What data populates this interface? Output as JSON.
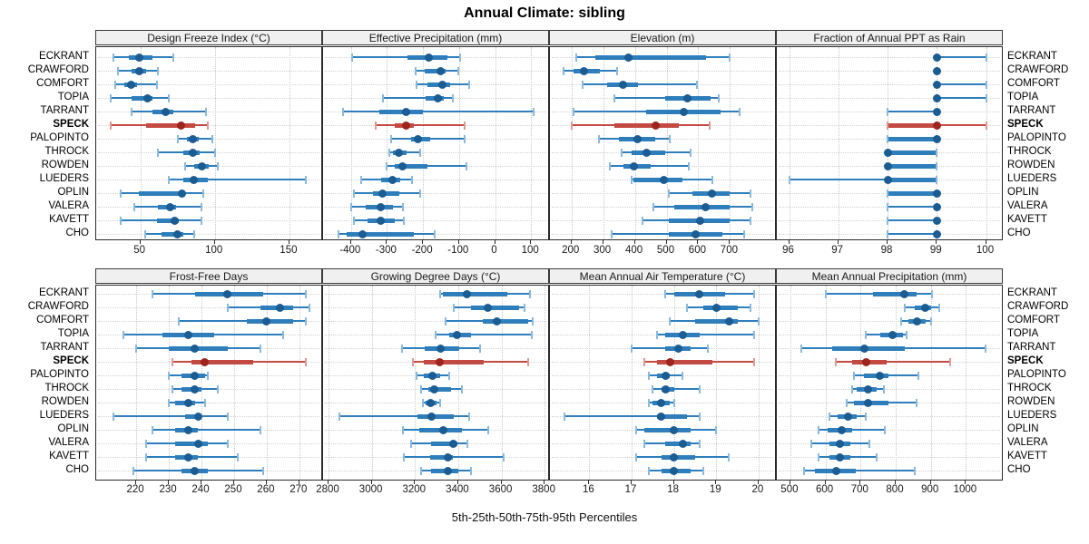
{
  "title": "Annual Climate: sibling",
  "xlabel": "5th-25th-50th-75th-95th Percentiles",
  "percentile_labels": [
    "5th",
    "25th",
    "50th",
    "75th",
    "95th"
  ],
  "stations": [
    "ECKRANT",
    "CRAWFORD",
    "COMFORT",
    "TOPIA",
    "TARRANT",
    "SPECK",
    "PALOPINTO",
    "THROCK",
    "ROWDEN",
    "LUEDERS",
    "OPLIN",
    "VALERA",
    "KAVETT",
    "CHO"
  ],
  "highlight_station": "SPECK",
  "colors": {
    "blue_line": "#2e7ebc",
    "blue_cap": "#8ab9dc",
    "blue_dot": "#1b5c93",
    "red_line": "#c34a42",
    "red_cap": "#dc9a94",
    "red_dot": "#9e241e",
    "strip_bg": "#f0f0f0",
    "grid": "#c9c9c9"
  },
  "chart_data": {
    "type": "dotplot-interval-trellis",
    "note": "Each row shows 5th-25th-50th-75th-95th percentile whisker/box/dot per station",
    "panels": [
      {
        "title": "Design Freeze Index (°C)",
        "grid_row": 0,
        "axis": {
          "min": 21,
          "max": 172,
          "ticks": [
            50,
            100,
            150
          ]
        },
        "values": {
          "ECKRANT": [
            32,
            42,
            49,
            58,
            72
          ],
          "CRAWFORD": [
            35,
            44,
            49,
            54,
            62
          ],
          "COMFORT": [
            33,
            39,
            44,
            48,
            61
          ],
          "TOPIA": [
            30,
            44,
            55,
            58,
            69
          ],
          "TARRANT": [
            44,
            58,
            67,
            72,
            94
          ],
          "SPECK": [
            30,
            54,
            77,
            87,
            95
          ],
          "PALOPINTO": [
            75,
            81,
            85,
            89,
            98
          ],
          "THROCK": [
            62,
            79,
            85,
            90,
            100
          ],
          "ROWDEN": [
            80,
            86,
            91,
            96,
            102
          ],
          "LUEDERS": [
            69,
            79,
            86,
            95,
            161
          ],
          "OPLIN": [
            37,
            49,
            78,
            80,
            92
          ],
          "VALERA": [
            46,
            62,
            70,
            74,
            91
          ],
          "KAVETT": [
            37,
            61,
            73,
            76,
            91
          ],
          "CHO": [
            53,
            64,
            75,
            79,
            86
          ]
        }
      },
      {
        "title": "Effective Precipitation (mm)",
        "grid_row": 0,
        "axis": {
          "min": -475,
          "max": 150,
          "ticks": [
            -400,
            -300,
            -200,
            -100,
            0,
            100
          ]
        },
        "values": {
          "ECKRANT": [
            -398,
            -243,
            -185,
            -133,
            -96
          ],
          "CRAWFORD": [
            -221,
            -196,
            -152,
            -137,
            -102
          ],
          "COMFORT": [
            -217,
            -188,
            -146,
            -125,
            -71
          ],
          "TOPIA": [
            -311,
            -192,
            -160,
            -142,
            -118
          ],
          "TARRANT": [
            -423,
            -321,
            -248,
            -200,
            108
          ],
          "SPECK": [
            -332,
            -279,
            -248,
            -225,
            -85
          ],
          "PALOPINTO": [
            -288,
            -233,
            -214,
            -179,
            -85
          ],
          "THROCK": [
            -293,
            -283,
            -268,
            -246,
            -208
          ],
          "ROWDEN": [
            -300,
            -279,
            -256,
            -188,
            -79
          ],
          "LUEDERS": [
            -371,
            -317,
            -285,
            -263,
            -231
          ],
          "OPLIN": [
            -392,
            -338,
            -313,
            -265,
            -208
          ],
          "VALERA": [
            -400,
            -358,
            -317,
            -283,
            -256
          ],
          "KAVETT": [
            -393,
            -354,
            -317,
            -279,
            -254
          ],
          "CHO": [
            -435,
            -413,
            -368,
            -225,
            -168
          ]
        }
      },
      {
        "title": "Elevation (m)",
        "grid_row": 0,
        "axis": {
          "min": 135,
          "max": 845,
          "ticks": [
            200,
            300,
            400,
            500,
            600,
            700
          ]
        },
        "values": {
          "ECKRANT": [
            215,
            275,
            380,
            625,
            700
          ],
          "CRAWFORD": [
            175,
            205,
            240,
            290,
            345
          ],
          "COMFORT": [
            234,
            313,
            362,
            411,
            595
          ],
          "TOPIA": [
            335,
            495,
            565,
            640,
            665
          ],
          "TARRANT": [
            205,
            435,
            555,
            670,
            730
          ],
          "SPECK": [
            200,
            335,
            465,
            540,
            635
          ],
          "PALOPINTO": [
            286,
            350,
            409,
            464,
            509
          ],
          "THROCK": [
            357,
            391,
            436,
            495,
            575
          ],
          "ROWDEN": [
            321,
            364,
            397,
            450,
            571
          ],
          "LUEDERS": [
            390,
            395,
            490,
            550,
            645
          ],
          "OPLIN": [
            507,
            582,
            644,
            698,
            764
          ],
          "VALERA": [
            459,
            523,
            623,
            700,
            770
          ],
          "KAVETT": [
            425,
            507,
            605,
            698,
            764
          ],
          "CHO": [
            327,
            507,
            591,
            675,
            745
          ]
        }
      },
      {
        "title": "Fraction of Annual PPT as Rain",
        "grid_row": 0,
        "axis": {
          "min": 95.77,
          "max": 100.34,
          "ticks": [
            96,
            97,
            98,
            99,
            100
          ]
        },
        "values": {
          "ECKRANT": [
            99,
            99,
            99,
            99,
            100
          ],
          "CRAWFORD": [
            99,
            99,
            99,
            99,
            99
          ],
          "COMFORT": [
            99,
            99,
            99,
            99,
            100
          ],
          "TOPIA": [
            99,
            99,
            99,
            99,
            100
          ],
          "TARRANT": [
            98,
            99,
            99,
            99,
            99
          ],
          "SPECK": [
            98,
            98,
            99,
            99,
            100
          ],
          "PALOPINTO": [
            98,
            98,
            99,
            99,
            99
          ],
          "THROCK": [
            98,
            98,
            98,
            99,
            99
          ],
          "ROWDEN": [
            98,
            98,
            98,
            99,
            99
          ],
          "LUEDERS": [
            96,
            98,
            98,
            99,
            99
          ],
          "OPLIN": [
            98,
            98,
            99,
            99,
            99
          ],
          "VALERA": [
            98,
            99,
            99,
            99,
            99
          ],
          "KAVETT": [
            98,
            99,
            99,
            99,
            99
          ],
          "CHO": [
            98,
            99,
            99,
            99,
            99
          ]
        }
      },
      {
        "title": "Frost-Free Days",
        "grid_row": 1,
        "axis": {
          "min": 208,
          "max": 277,
          "ticks": [
            220,
            230,
            240,
            250,
            260,
            270
          ]
        },
        "values": {
          "ECKRANT": [
            225,
            238,
            248,
            259,
            272
          ],
          "CRAWFORD": [
            248,
            258,
            264,
            268,
            273
          ],
          "COMFORT": [
            233,
            254,
            260,
            268,
            272
          ],
          "TOPIA": [
            216,
            228,
            236,
            244,
            265
          ],
          "TARRANT": [
            220,
            230,
            238,
            248,
            258
          ],
          "SPECK": [
            231,
            237,
            241,
            256,
            272
          ],
          "PALOPINTO": [
            230,
            234,
            238,
            241,
            242
          ],
          "THROCK": [
            231,
            234,
            238,
            240,
            245
          ],
          "ROWDEN": [
            230,
            232,
            236,
            238,
            241
          ],
          "LUEDERS": [
            213,
            235,
            239,
            240,
            248
          ],
          "OPLIN": [
            225,
            232,
            236,
            239,
            258
          ],
          "VALERA": [
            223,
            232,
            239,
            242,
            248
          ],
          "KAVETT": [
            223,
            232,
            236,
            239,
            251
          ],
          "CHO": [
            219,
            234,
            238,
            242,
            259
          ]
        }
      },
      {
        "title": "Growing Degree Days (°C)",
        "grid_row": 1,
        "axis": {
          "min": 2779,
          "max": 3820,
          "ticks": [
            2800,
            3000,
            3200,
            3400,
            3600,
            3800
          ]
        },
        "values": {
          "ECKRANT": [
            3315,
            3330,
            3440,
            3625,
            3730
          ],
          "CRAWFORD": [
            3380,
            3460,
            3535,
            3680,
            3705
          ],
          "COMFORT": [
            3340,
            3515,
            3580,
            3725,
            3745
          ],
          "TOPIA": [
            3295,
            3360,
            3395,
            3460,
            3740
          ],
          "TARRANT": [
            3140,
            3245,
            3320,
            3405,
            3500
          ],
          "SPECK": [
            3190,
            3240,
            3315,
            3520,
            3725
          ],
          "PALOPINTO": [
            3205,
            3240,
            3280,
            3315,
            3360
          ],
          "THROCK": [
            3230,
            3260,
            3290,
            3365,
            3415
          ],
          "ROWDEN": [
            3235,
            3250,
            3270,
            3300,
            3315
          ],
          "LUEDERS": [
            2850,
            3210,
            3275,
            3380,
            3450
          ],
          "OPLIN": [
            3145,
            3220,
            3330,
            3415,
            3540
          ],
          "VALERA": [
            3180,
            3275,
            3375,
            3395,
            3440
          ],
          "KAVETT": [
            3150,
            3270,
            3350,
            3375,
            3610
          ],
          "CHO": [
            3230,
            3275,
            3350,
            3400,
            3460
          ]
        }
      },
      {
        "title": "Mean Annual Air Temperature (°C)",
        "grid_row": 1,
        "axis": {
          "min": 15.09,
          "max": 20.41,
          "ticks": [
            16,
            17,
            18,
            19,
            20
          ]
        },
        "values": {
          "ECKRANT": [
            17.8,
            18.0,
            18.6,
            19.2,
            19.9
          ],
          "CRAWFORD": [
            18.3,
            18.7,
            19.0,
            19.5,
            19.8
          ],
          "COMFORT": [
            17.9,
            18.5,
            19.3,
            19.5,
            20.0
          ],
          "TOPIA": [
            17.6,
            17.8,
            18.2,
            18.6,
            19.9
          ],
          "TARRANT": [
            17.0,
            17.8,
            18.1,
            18.4,
            18.8
          ],
          "SPECK": [
            17.3,
            17.6,
            17.9,
            18.9,
            19.9
          ],
          "PALOPINTO": [
            17.4,
            17.6,
            17.8,
            17.9,
            18.2
          ],
          "THROCK": [
            17.5,
            17.7,
            17.8,
            18.0,
            18.6
          ],
          "ROWDEN": [
            17.4,
            17.5,
            17.7,
            17.9,
            18.0
          ],
          "LUEDERS": [
            15.4,
            17.6,
            17.7,
            18.3,
            18.6
          ],
          "OPLIN": [
            17.1,
            17.3,
            18.0,
            18.4,
            19.0
          ],
          "VALERA": [
            17.3,
            17.8,
            18.2,
            18.4,
            18.6
          ],
          "KAVETT": [
            17.1,
            17.7,
            18.0,
            18.5,
            19.3
          ],
          "CHO": [
            17.4,
            17.7,
            18.0,
            18.4,
            18.7
          ]
        }
      },
      {
        "title": "Mean Annual Precipitation (mm)",
        "grid_row": 1,
        "axis": {
          "min": 464,
          "max": 1105,
          "ticks": [
            500,
            600,
            700,
            800,
            900,
            1000
          ]
        },
        "values": {
          "ECKRANT": [
            600,
            735,
            825,
            860,
            903
          ],
          "CRAWFORD": [
            825,
            855,
            885,
            900,
            925
          ],
          "COMFORT": [
            815,
            835,
            860,
            885,
            900
          ],
          "TOPIA": [
            715,
            755,
            790,
            820,
            830
          ],
          "TARRANT": [
            530,
            620,
            710,
            825,
            1055
          ],
          "SPECK": [
            630,
            675,
            715,
            775,
            955
          ],
          "PALOPINTO": [
            680,
            710,
            755,
            780,
            865
          ],
          "THROCK": [
            675,
            690,
            720,
            745,
            765
          ],
          "ROWDEN": [
            660,
            680,
            720,
            780,
            860
          ],
          "LUEDERS": [
            610,
            635,
            665,
            690,
            715
          ],
          "OPLIN": [
            580,
            605,
            645,
            675,
            770
          ],
          "VALERA": [
            560,
            610,
            640,
            670,
            725
          ],
          "KAVETT": [
            580,
            610,
            640,
            670,
            745
          ],
          "CHO": [
            540,
            570,
            630,
            685,
            855
          ]
        }
      }
    ]
  }
}
